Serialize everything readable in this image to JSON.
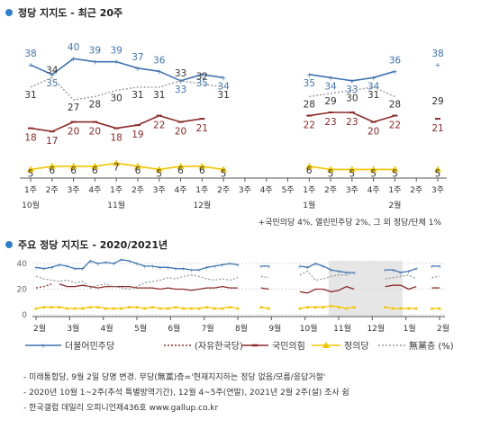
{
  "headings": {
    "top": "정당 지지도 - 최근 20주",
    "bottom": "주요 정당 지지도 - 2020/2021년"
  },
  "colors": {
    "democratic": "#3f74b2",
    "peoplepower": "#8b2a2a",
    "justice": "#f2c500",
    "none": "#999999",
    "accent": "#2f7fd0",
    "shade": "#e6e6e6"
  },
  "chart_data": [
    {
      "type": "line",
      "categories": [
        "1주",
        "2주",
        "3주",
        "4주",
        "1주",
        "2주",
        "3주",
        "4주",
        "1주",
        "2주",
        "3주",
        "4주",
        "5주",
        "1주",
        "2주",
        "3주",
        "4주",
        "1주",
        "2주",
        "3주"
      ],
      "month_labels": [
        {
          "label": "10월",
          "index": 0
        },
        {
          "label": "11월",
          "index": 4
        },
        {
          "label": "12월",
          "index": 8
        },
        {
          "label": "1월",
          "index": 13
        },
        {
          "label": "2월",
          "index": 17
        }
      ],
      "series": [
        {
          "name": "더불어민주당",
          "key": "democratic",
          "values": [
            38,
            35,
            40,
            39,
            39,
            37,
            36,
            33,
            35,
            34,
            null,
            null,
            null,
            35,
            34,
            33,
            34,
            36,
            null,
            38
          ]
        },
        {
          "name": "국민의힘",
          "key": "peoplepower",
          "values": [
            18,
            17,
            20,
            20,
            18,
            19,
            22,
            20,
            21,
            null,
            null,
            null,
            null,
            22,
            23,
            23,
            20,
            22,
            null,
            21
          ]
        },
        {
          "name": "정의당",
          "key": "justice",
          "values": [
            5,
            6,
            6,
            6,
            7,
            6,
            5,
            6,
            6,
            5,
            null,
            null,
            null,
            6,
            5,
            5,
            5,
            5,
            null,
            5
          ]
        },
        {
          "name": "無黨층 (%)",
          "key": "none",
          "values": [
            31,
            34,
            27,
            28,
            30,
            31,
            31,
            33,
            32,
            31,
            null,
            null,
            null,
            28,
            29,
            30,
            31,
            28,
            null,
            29
          ]
        }
      ],
      "footnote": "+국민의당 4%, 열린민주당 2%, 그 외 정당/단체 1%"
    },
    {
      "type": "line",
      "ylim": [
        0,
        40
      ],
      "yticks": [
        0,
        20,
        40
      ],
      "month_labels": [
        "2월",
        "3월",
        "4월",
        "5월",
        "6월",
        "7월",
        "8월",
        "9월",
        "10월",
        "11월",
        "12월",
        "1월",
        "2월"
      ],
      "month_positions": [
        0,
        1,
        2,
        3,
        4,
        5,
        6,
        7,
        8,
        9,
        10,
        11,
        12
      ],
      "shaded_range": [
        8.7,
        10.9
      ],
      "series": [
        {
          "name": "더불어민주당",
          "key": "democratic",
          "values": [
            37,
            36,
            37,
            39,
            38,
            36,
            36,
            42,
            40,
            41,
            40,
            43,
            42,
            40,
            38,
            38,
            37,
            37,
            36,
            36,
            35,
            35,
            37,
            38,
            39,
            40,
            39,
            null,
            null,
            38,
            38,
            null,
            null,
            null,
            38,
            37,
            40,
            38,
            35,
            34,
            33,
            33,
            null,
            null,
            null,
            35,
            35,
            33,
            34,
            36,
            null,
            38,
            38
          ]
        },
        {
          "name": "(자유한국당)",
          "key": "peoplepower",
          "values": [
            21,
            22,
            24,
            null,
            null,
            null,
            null,
            null,
            null,
            null,
            null,
            null,
            null,
            null,
            null,
            null,
            null,
            null,
            null,
            null,
            null,
            null,
            null,
            null,
            null,
            null,
            null,
            null,
            null,
            null,
            null,
            null,
            null,
            null,
            null,
            null,
            null,
            null,
            null,
            null,
            null,
            null,
            null,
            null,
            null,
            null,
            null,
            null,
            null,
            null,
            null,
            null,
            null
          ],
          "dashed": true
        },
        {
          "name": "국민의힘",
          "key": "peoplepower",
          "values": [
            null,
            null,
            null,
            24,
            22,
            22,
            23,
            22,
            21,
            22,
            22,
            22,
            22,
            21,
            21,
            21,
            20,
            21,
            20,
            20,
            19,
            20,
            21,
            21,
            22,
            21,
            21,
            null,
            null,
            21,
            20,
            null,
            null,
            null,
            18,
            17,
            20,
            20,
            18,
            19,
            22,
            20,
            null,
            null,
            null,
            22,
            23,
            23,
            20,
            22,
            null,
            21,
            21
          ]
        },
        {
          "name": "정의당",
          "key": "justice",
          "values": [
            5,
            6,
            6,
            6,
            5,
            5,
            5,
            6,
            6,
            5,
            5,
            5,
            6,
            6,
            5,
            6,
            5,
            5,
            6,
            5,
            5,
            5,
            6,
            5,
            5,
            6,
            5,
            null,
            null,
            6,
            5,
            null,
            null,
            null,
            5,
            6,
            6,
            6,
            7,
            6,
            5,
            6,
            null,
            null,
            null,
            6,
            5,
            5,
            5,
            5,
            null,
            5,
            5
          ]
        },
        {
          "name": "無黨층 (%)",
          "key": "none",
          "values": [
            30,
            28,
            27,
            26,
            27,
            25,
            26,
            21,
            23,
            24,
            22,
            21,
            20,
            22,
            25,
            26,
            27,
            29,
            28,
            30,
            31,
            30,
            28,
            27,
            28,
            27,
            29,
            null,
            null,
            30,
            29,
            null,
            null,
            null,
            31,
            34,
            27,
            28,
            30,
            31,
            31,
            33,
            null,
            null,
            null,
            28,
            29,
            30,
            31,
            28,
            null,
            29,
            30
          ]
        }
      ]
    }
  ],
  "notes": [
    "- 미래통합당, 9월 2일 당명 변경. 무당(無黨)층='현재지지하는 정당 없음/모름/응답거절'",
    "- 2020년 10월 1~2주(추석 특별방역기간), 12월 4~5주(연말), 2021년 2월 2주(설) 조사 쉼",
    "- 한국갤럽 데일리 오피니언제436호 www.gallup.co.kr"
  ]
}
